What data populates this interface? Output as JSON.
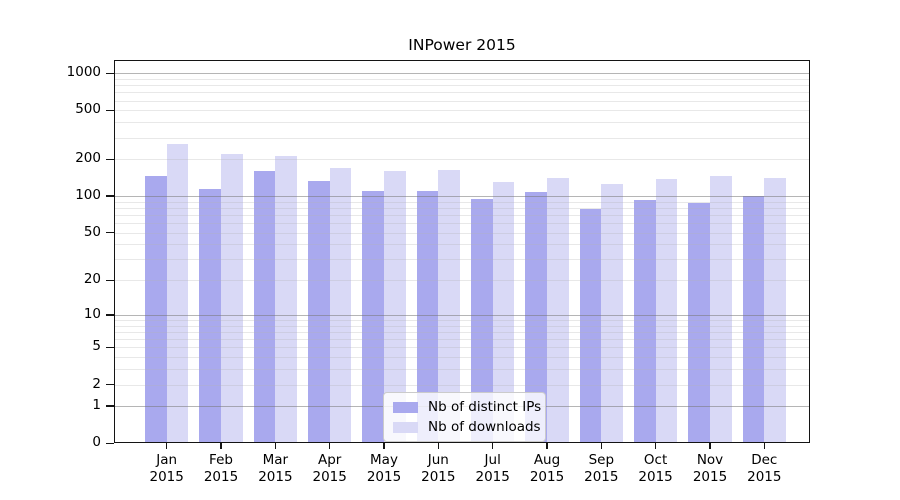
{
  "chart_data": {
    "type": "bar",
    "title": "INPower 2015",
    "categories": [
      "Jan 2015",
      "Feb 2015",
      "Mar 2015",
      "Apr 2015",
      "May 2015",
      "Jun 2015",
      "Jul 2015",
      "Aug 2015",
      "Sep 2015",
      "Oct 2015",
      "Nov 2015",
      "Dec 2015"
    ],
    "series": [
      {
        "name": "Nb of distinct IPs",
        "color": "#a9a9ee",
        "values": [
          145,
          115,
          160,
          132,
          111,
          111,
          94,
          108,
          78,
          93,
          88,
          100
        ]
      },
      {
        "name": "Nb of downloads",
        "color": "#d9d9f6",
        "values": [
          268,
          220,
          214,
          170,
          160,
          165,
          130,
          141,
          126,
          139,
          146,
          142
        ]
      }
    ],
    "xlabel": "",
    "ylabel": "",
    "yscale": "log(1+x)",
    "ylim": [
      0,
      1283
    ],
    "yticks": [
      0,
      1,
      2,
      5,
      10,
      20,
      50,
      100,
      200,
      500,
      1000
    ],
    "grid": {
      "on": true,
      "major_lines": [
        1,
        10,
        100,
        1000
      ],
      "minor_lines": [
        2,
        3,
        4,
        5,
        6,
        7,
        8,
        9,
        20,
        30,
        40,
        50,
        60,
        70,
        80,
        90,
        200,
        300,
        400,
        500,
        600,
        700,
        800,
        900
      ]
    },
    "legend_position": "lower center"
  }
}
